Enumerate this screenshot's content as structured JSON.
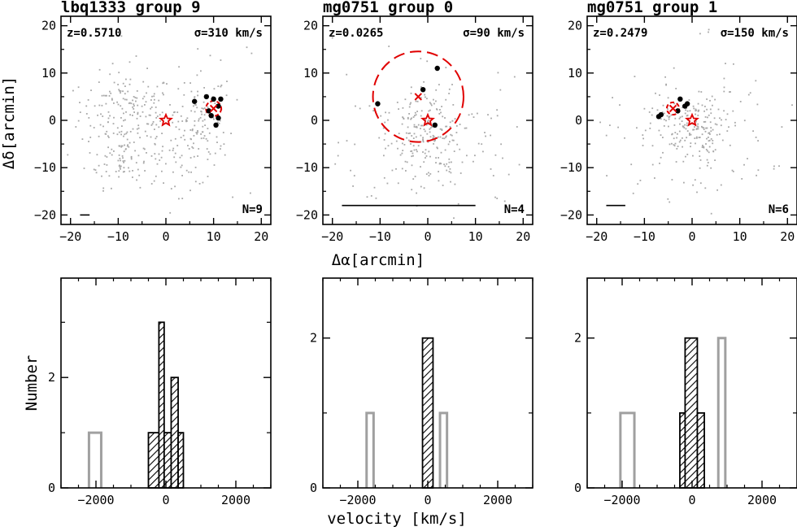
{
  "figure": {
    "sky_xlabel": "Δα[arcmin]",
    "sky_ylabel": "Δδ[arcmin]",
    "hist_xlabel": "velocity [km/s]",
    "hist_ylabel": "Number"
  },
  "colors": {
    "axis": "#000000",
    "field_dots": "#a8a8a8",
    "member_dots": "#000000",
    "marker_red": "#e00000",
    "hist_member_fill": "#000000",
    "hist_nonmember": "#a0a0a0"
  },
  "chart_data": [
    {
      "type": "scatter",
      "title": "lbq1333 group 9",
      "z_label": "z=0.5710",
      "sigma_label": "σ=310 km/s",
      "n_label": "N=9",
      "xlim": [
        -22,
        22
      ],
      "ylim": [
        -22,
        22
      ],
      "xticks": [
        -20,
        -10,
        0,
        10,
        20
      ],
      "yticks": [
        -20,
        -10,
        0,
        10,
        20
      ],
      "show_xlabel": false,
      "show_ylabel": true,
      "scalebar": [
        [
          -18,
          -20
        ],
        [
          -16,
          -20
        ]
      ],
      "star": [
        0,
        0
      ],
      "centroid": [
        10,
        2.5
      ],
      "circle_radius": 1.6,
      "field_regions": [
        {
          "cx": -8,
          "cy": 2,
          "sx": 5,
          "sy": 4,
          "n": 160
        },
        {
          "cx": -9,
          "cy": -8,
          "sx": 4,
          "sy": 3,
          "n": 90
        },
        {
          "cx": 5,
          "cy": -6,
          "sx": 4,
          "sy": 4,
          "n": 90
        },
        {
          "cx": 8,
          "cy": 2,
          "sx": 3,
          "sy": 4,
          "n": 70
        },
        {
          "cx": 0,
          "cy": 0,
          "sx": 12,
          "sy": 10,
          "n": 30
        }
      ],
      "members": [
        [
          6,
          4
        ],
        [
          8.5,
          5
        ],
        [
          10,
          4.5
        ],
        [
          11.5,
          4.5
        ],
        [
          11,
          3
        ],
        [
          9,
          2
        ],
        [
          9.5,
          1
        ],
        [
          11,
          0.5
        ],
        [
          10.5,
          -1
        ]
      ]
    },
    {
      "type": "scatter",
      "title": "mg0751 group 0",
      "z_label": "z=0.0265",
      "sigma_label": "σ=90 km/s",
      "n_label": "N=4",
      "xlim": [
        -22,
        22
      ],
      "ylim": [
        -22,
        22
      ],
      "xticks": [
        -20,
        -10,
        0,
        10,
        20
      ],
      "yticks": [
        -20,
        -10,
        0,
        10,
        20
      ],
      "show_xlabel": true,
      "show_ylabel": false,
      "scalebar": [
        [
          -18,
          -18
        ],
        [
          10,
          -18
        ]
      ],
      "star": [
        0,
        0
      ],
      "centroid": [
        -2,
        5
      ],
      "circle_radius": 9.5,
      "field_regions": [
        {
          "cx": 0,
          "cy": -2,
          "sx": 4,
          "sy": 4,
          "n": 120
        },
        {
          "cx": 0,
          "cy": -5,
          "sx": 9,
          "sy": 7,
          "n": 140
        },
        {
          "cx": 0,
          "cy": 0,
          "sx": 15,
          "sy": 12,
          "n": 40
        }
      ],
      "members": [
        [
          -10.5,
          3.5
        ],
        [
          -1,
          6.5
        ],
        [
          2,
          11
        ],
        [
          1.5,
          -1
        ]
      ]
    },
    {
      "type": "scatter",
      "title": "mg0751 group 1",
      "z_label": "z=0.2479",
      "sigma_label": "σ=150 km/s",
      "n_label": "N=6",
      "xlim": [
        -22,
        22
      ],
      "ylim": [
        -22,
        22
      ],
      "xticks": [
        -20,
        -10,
        0,
        10,
        20
      ],
      "yticks": [
        -20,
        -10,
        0,
        10,
        20
      ],
      "show_xlabel": false,
      "show_ylabel": false,
      "scalebar": [
        [
          -18,
          -18
        ],
        [
          -14,
          -18
        ]
      ],
      "star": [
        0,
        0
      ],
      "centroid": [
        -4,
        2.5
      ],
      "circle_radius": 1.3,
      "field_regions": [
        {
          "cx": 0,
          "cy": -1,
          "sx": 3,
          "sy": 3,
          "n": 110
        },
        {
          "cx": 0,
          "cy": -4,
          "sx": 8,
          "sy": 6,
          "n": 130
        },
        {
          "cx": 0,
          "cy": 0,
          "sx": 15,
          "sy": 12,
          "n": 40
        }
      ],
      "members": [
        [
          -6.5,
          1.2
        ],
        [
          -7,
          0.8
        ],
        [
          -2.5,
          4.5
        ],
        [
          -1,
          3.5
        ],
        [
          -1.5,
          3
        ],
        [
          -3,
          2
        ]
      ]
    },
    {
      "type": "bar",
      "xlim": [
        -3000,
        3000
      ],
      "ylim": [
        0,
        3.8
      ],
      "xticks": [
        -2000,
        0,
        2000
      ],
      "xtick_labels": [
        "−2000",
        "0",
        "2000"
      ],
      "yticks": [
        0,
        2
      ],
      "yminor": [
        1,
        3
      ],
      "show_xlabel": false,
      "show_ylabel": true,
      "member_bins": [
        [
          -500,
          -200,
          1
        ],
        [
          -200,
          -50,
          3
        ],
        [
          -50,
          150,
          1
        ],
        [
          150,
          350,
          2
        ],
        [
          350,
          500,
          1
        ]
      ],
      "nonmember_bins": [
        [
          -2200,
          -1850,
          1
        ]
      ]
    },
    {
      "type": "bar",
      "xlim": [
        -3000,
        3000
      ],
      "ylim": [
        0,
        2.8
      ],
      "xticks": [
        -2000,
        0,
        2000
      ],
      "xtick_labels": [
        "−2000",
        "0",
        "2000"
      ],
      "yticks": [
        0,
        2
      ],
      "yminor": [
        1
      ],
      "show_xlabel": true,
      "show_ylabel": false,
      "member_bins": [
        [
          -150,
          150,
          2
        ]
      ],
      "nonmember_bins": [
        [
          -1750,
          -1550,
          1
        ],
        [
          350,
          550,
          1
        ]
      ]
    },
    {
      "type": "bar",
      "xlim": [
        -3000,
        3000
      ],
      "ylim": [
        0,
        2.8
      ],
      "xticks": [
        -2000,
        0,
        2000
      ],
      "xtick_labels": [
        "−2000",
        "0",
        "2000"
      ],
      "yticks": [
        0,
        2
      ],
      "yminor": [
        1
      ],
      "show_xlabel": false,
      "show_ylabel": false,
      "member_bins": [
        [
          -350,
          -200,
          1
        ],
        [
          -200,
          150,
          2
        ],
        [
          150,
          350,
          1
        ]
      ],
      "nonmember_bins": [
        [
          -2050,
          -1650,
          1
        ],
        [
          750,
          950,
          2
        ]
      ]
    }
  ]
}
